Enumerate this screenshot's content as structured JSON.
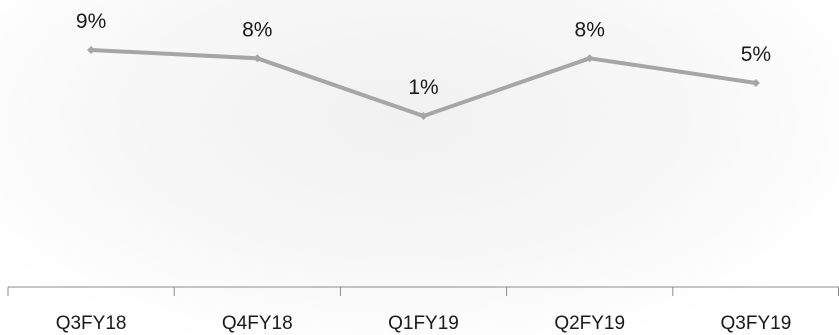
{
  "chart_data": {
    "type": "line",
    "categories": [
      "Q3FY18",
      "Q4FY18",
      "Q1FY19",
      "Q2FY19",
      "Q3FY19"
    ],
    "series": [
      {
        "values": [
          9,
          8,
          1,
          8,
          5
        ],
        "labels": [
          "9%",
          "8%",
          "1%",
          "8%",
          "5%"
        ],
        "color": "#a6a6a6"
      }
    ],
    "value_unit": "%",
    "title": "",
    "xlabel": "",
    "ylabel": "",
    "grid": false,
    "legend": "none"
  }
}
